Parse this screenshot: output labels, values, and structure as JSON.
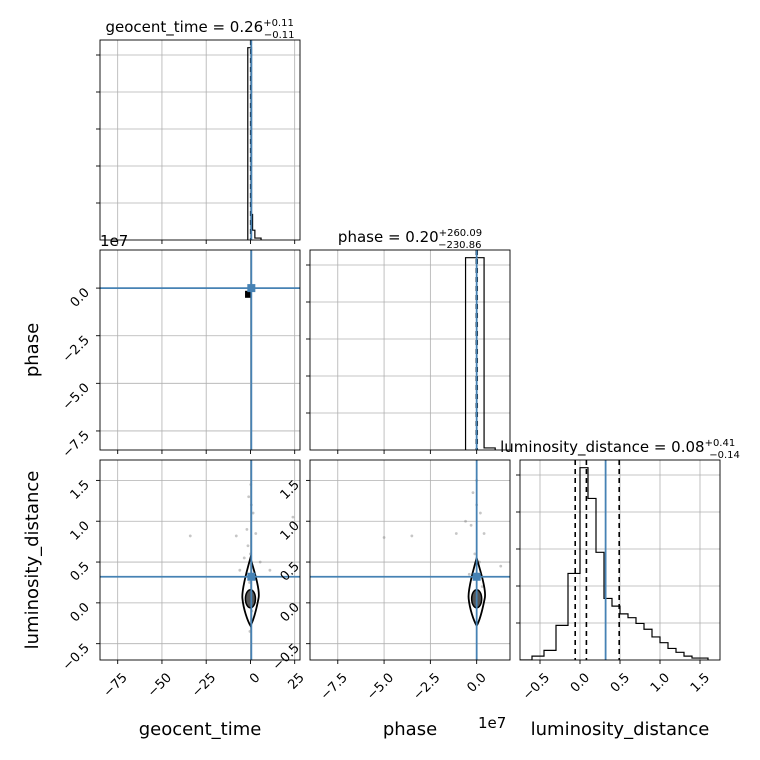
{
  "chart_data": {
    "type": "scatter",
    "parameters": [
      "geocent_time",
      "phase",
      "luminosity_distance"
    ],
    "colors": {
      "truth": "#4682b4",
      "hist": "#000000",
      "points": "#808080"
    },
    "grid": true,
    "panels": [
      {
        "id": "hist-geocent",
        "type": "histogram",
        "title": {
          "main": "geocent_time = 0.26",
          "sup": "+0.11",
          "sub": "−0.11"
        },
        "xlim": [
          -85,
          28
        ],
        "bin_edges": [
          -1.5,
          0.0,
          0.6,
          1.2,
          2.5,
          6.0
        ],
        "counts": [
          0.98,
          0.98,
          0.13,
          0.05,
          0.01
        ],
        "quantiles": [
          0.15,
          0.26,
          0.37
        ],
        "truth": 0.5
      },
      {
        "id": "scatter-phase-vs-geocent",
        "type": "scatter",
        "xlim": [
          -85,
          28
        ],
        "ylim": [
          -8.5,
          2.0
        ],
        "y_offset_label": "1e7",
        "truth": {
          "x": 0.5,
          "y": 0.0
        },
        "points": [
          [
            0.0,
            0.0
          ],
          [
            0.5,
            0.0
          ],
          [
            -0.8,
            -0.3
          ],
          [
            -1.2,
            -0.4
          ],
          [
            0.3,
            -0.1
          ]
        ]
      },
      {
        "id": "hist-phase",
        "type": "histogram",
        "title": {
          "main": "phase = 0.20",
          "sup": "+260.09",
          "sub": "−230.86"
        },
        "xlim": [
          -9.0,
          1.8
        ],
        "bin_edges": [
          -0.6,
          -0.1,
          0.4,
          1.0
        ],
        "counts": [
          0.93,
          0.93,
          0.01
        ],
        "quantiles": [
          -0.02,
          0.0,
          0.03
        ],
        "truth": 0.0
      },
      {
        "id": "scatter-lumdist-vs-geocent",
        "type": "scatter",
        "xlim": [
          -85,
          28
        ],
        "ylim": [
          -0.7,
          1.75
        ],
        "truth": {
          "x": 0.5,
          "y": 0.32
        },
        "points": [
          [
            -1.0,
            1.3
          ],
          [
            0.5,
            1.2
          ],
          [
            1.5,
            1.1
          ],
          [
            -2.0,
            0.9
          ],
          [
            3.0,
            0.85
          ],
          [
            0.0,
            0.6
          ],
          [
            -3.5,
            0.55
          ],
          [
            5.5,
            0.5
          ],
          [
            -34,
            0.82
          ],
          [
            -8,
            0.82
          ],
          [
            24,
            1.05
          ],
          [
            11,
            0.4
          ],
          [
            -6,
            0.4
          ],
          [
            0.2,
            1.45
          ],
          [
            -0.5,
            0.25
          ],
          [
            0.8,
            -0.1
          ],
          [
            -1.4,
            0.7
          ],
          [
            2.2,
            0.3
          ],
          [
            -0.3,
            -0.35
          ],
          [
            0.0,
            0.05
          ]
        ],
        "contours": true
      },
      {
        "id": "scatter-lumdist-vs-phase",
        "type": "scatter",
        "xlim": [
          -9.0,
          1.8
        ],
        "ylim": [
          -0.7,
          1.75
        ],
        "x_offset_label": "1e7",
        "truth": {
          "x": 0.0,
          "y": 0.32
        },
        "points": [
          [
            -0.2,
            1.35
          ],
          [
            0.0,
            1.2
          ],
          [
            0.2,
            1.1
          ],
          [
            -0.3,
            0.95
          ],
          [
            0.4,
            0.85
          ],
          [
            -1.1,
            0.85
          ],
          [
            -3.5,
            0.82
          ],
          [
            -5.0,
            0.8
          ],
          [
            -0.6,
            1.0
          ],
          [
            -0.1,
            0.6
          ],
          [
            0.15,
            0.5
          ],
          [
            1.3,
            0.45
          ],
          [
            -0.4,
            0.35
          ],
          [
            0.3,
            0.2
          ],
          [
            0.0,
            1.5
          ]
        ],
        "contours": true
      },
      {
        "id": "hist-lumdist",
        "type": "histogram",
        "title": {
          "main": "luminosity_distance = 0.08",
          "sup": "+0.41",
          "sub": "−0.14"
        },
        "xlim": [
          -0.75,
          1.75
        ],
        "bin_edges": [
          -0.75,
          -0.6,
          -0.45,
          -0.3,
          -0.15,
          0.0,
          0.1,
          0.2,
          0.3,
          0.4,
          0.5,
          0.6,
          0.7,
          0.8,
          0.9,
          1.0,
          1.1,
          1.2,
          1.3,
          1.4,
          1.5,
          1.6
        ],
        "counts": [
          0.0,
          0.02,
          0.05,
          0.18,
          0.45,
          1.0,
          0.84,
          0.56,
          0.32,
          0.28,
          0.24,
          0.22,
          0.19,
          0.16,
          0.12,
          0.09,
          0.06,
          0.04,
          0.02,
          0.01,
          0.01
        ],
        "quantiles": [
          -0.06,
          0.08,
          0.49
        ],
        "truth": 0.32
      }
    ],
    "axes": {
      "geocent_time": {
        "ticks": [
          -75,
          -50,
          -25,
          0,
          25
        ],
        "tick_labels": [
          "−75",
          "−50",
          "−25",
          "0",
          "25"
        ],
        "label": "geocent_time"
      },
      "phase": {
        "ticks": [
          -7.5,
          -5.0,
          -2.5,
          0.0
        ],
        "tick_labels": [
          "−7.5",
          "−5.0",
          "−2.5",
          "0.0"
        ],
        "label": "phase",
        "offset_label": "1e7"
      },
      "luminosity_distance": {
        "ticks": [
          -0.5,
          0.0,
          0.5,
          1.0,
          1.5
        ],
        "tick_labels": [
          "−0.5",
          "0.0",
          "0.5",
          "1.0",
          "1.5"
        ],
        "label": "luminosity_distance"
      }
    }
  }
}
